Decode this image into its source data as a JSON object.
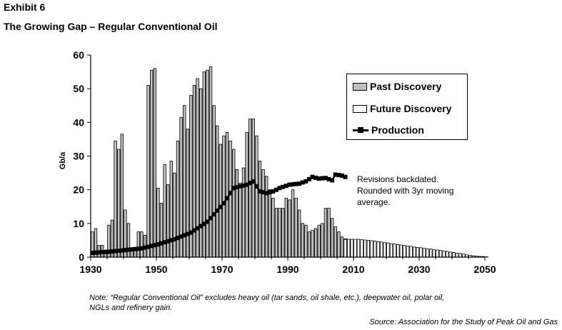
{
  "header": {
    "exhibit": "Exhibit 6",
    "title": "The Growing Gap – Regular Conventional Oil"
  },
  "annotation": {
    "line1": "Revisions backdated.",
    "line2": "Rounded with 3yr moving",
    "line3": "average."
  },
  "footer": {
    "note_line1": "Note:  “Regular Conventional Oil” excludes heavy oil (tar sands, oil shale, etc.), deepwater oil, polar oil,",
    "note_line2": "NGLs and refinery gain.",
    "source": "Source:  Association for the Study of Peak Oil and Gas"
  },
  "colors": {
    "past_fill": "#c0c0c0",
    "future_fill": "#ffffff",
    "production": "#000000"
  },
  "chart_data": {
    "type": "bar",
    "title": "The Growing Gap – Regular Conventional Oil",
    "xlabel": "",
    "ylabel": "Gb/a",
    "ylim": [
      0,
      60
    ],
    "xlim": [
      1930,
      2050
    ],
    "yticks": [
      "0",
      "10",
      "20",
      "30",
      "40",
      "50",
      "60"
    ],
    "xticks": [
      "1930",
      "1950",
      "1970",
      "1990",
      "2010",
      "2030",
      "2050"
    ],
    "legend": {
      "position": "top-right",
      "past": "Past Discovery",
      "future": "Future Discovery",
      "production": "Production"
    },
    "series": [
      {
        "name": "Past Discovery",
        "type": "bar",
        "start_year": 1930,
        "values": [
          7.5,
          8.5,
          3.5,
          3.5,
          2,
          9.5,
          11,
          34.5,
          32,
          36.5,
          14,
          10,
          2,
          2.5,
          7.5,
          7.5,
          6.5,
          51,
          55.5,
          56,
          20.5,
          16,
          27.5,
          21.5,
          28.5,
          25,
          34.5,
          41.5,
          45,
          38,
          48,
          51,
          53,
          50,
          55,
          55.5,
          56.5,
          45,
          39,
          33.5,
          36,
          37,
          34.5,
          32,
          26,
          22,
          26.5,
          37,
          41,
          41,
          36,
          28.5,
          26,
          24,
          20,
          17.5,
          14.5,
          14.5,
          14.5,
          17.5,
          17,
          20,
          17.5,
          14,
          10,
          9.5,
          7.5,
          8,
          8.5,
          9.5,
          10,
          14.5,
          14.5,
          11.5,
          9,
          7.5,
          6,
          5.5,
          5,
          4.5
        ]
      },
      {
        "name": "Future Discovery",
        "type": "bar",
        "start_year": 2007,
        "values": [
          5.2,
          5.3,
          5.3,
          5.3,
          5.3,
          5.2,
          5.1,
          5.0,
          4.9,
          4.8,
          4.6,
          4.5,
          4.3,
          4.2,
          4.0,
          3.9,
          3.7,
          3.6,
          3.5,
          3.3,
          3.2,
          3.0,
          2.9,
          2.8,
          2.6,
          2.5,
          2.4,
          2.2,
          2.1,
          2.0,
          1.8,
          1.7,
          1.5,
          1.4,
          1.2,
          1.1,
          0.9,
          0.7,
          0.5,
          0.4,
          0.3,
          0.2,
          0.2,
          0.1
        ]
      },
      {
        "name": "Production",
        "type": "line",
        "points": [
          [
            1930,
            1.3
          ],
          [
            1935,
            1.6
          ],
          [
            1940,
            2.1
          ],
          [
            1945,
            2.6
          ],
          [
            1950,
            3.8
          ],
          [
            1955,
            5.3
          ],
          [
            1960,
            7.3
          ],
          [
            1965,
            10.5
          ],
          [
            1970,
            16
          ],
          [
            1973,
            20.5
          ],
          [
            1975,
            21
          ],
          [
            1977,
            21.5
          ],
          [
            1979,
            22.5
          ],
          [
            1981,
            19.5
          ],
          [
            1983,
            19
          ],
          [
            1985,
            19.5
          ],
          [
            1987,
            20.5
          ],
          [
            1990,
            21.5
          ],
          [
            1993,
            21.8
          ],
          [
            1995,
            22.5
          ],
          [
            1997,
            23.8
          ],
          [
            1999,
            23.3
          ],
          [
            2001,
            23.5
          ],
          [
            2003,
            22.8
          ],
          [
            2004,
            24.5
          ],
          [
            2006,
            24.2
          ],
          [
            2007,
            23.8
          ]
        ]
      }
    ]
  }
}
